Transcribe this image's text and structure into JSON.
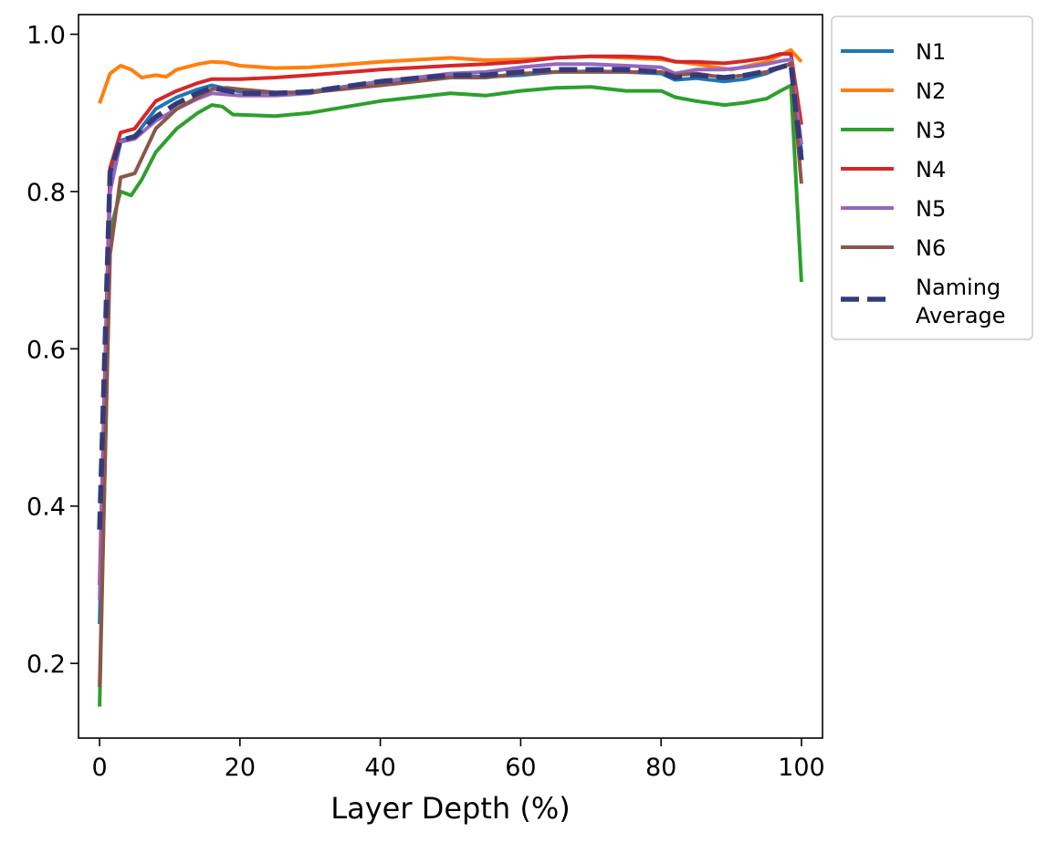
{
  "chart_data": {
    "type": "line",
    "title": "",
    "xlabel": "Layer Depth (%)",
    "ylabel": "",
    "xlim": [
      -3,
      103
    ],
    "ylim": [
      0.105,
      1.025
    ],
    "xticks": [
      0,
      20,
      40,
      60,
      80,
      100
    ],
    "yticks": [
      0.2,
      0.4,
      0.6,
      0.8,
      1.0
    ],
    "xtick_labels": [
      "0",
      "20",
      "40",
      "60",
      "80",
      "100"
    ],
    "ytick_labels": [
      "0.2",
      "0.4",
      "0.6",
      "0.8",
      "1.0"
    ],
    "grid": false,
    "legend_position": "outside-top-right",
    "series": [
      {
        "name": "N1",
        "color": "#1f77b4",
        "style": "solid",
        "x": [
          0,
          1.5,
          3,
          5,
          8,
          11,
          14,
          16,
          20,
          25,
          30,
          40,
          50,
          55,
          60,
          65,
          70,
          75,
          80,
          82,
          85,
          89,
          92,
          95,
          97,
          98.5,
          100
        ],
        "y": [
          0.25,
          0.82,
          0.865,
          0.87,
          0.905,
          0.92,
          0.93,
          0.935,
          0.927,
          0.925,
          0.927,
          0.94,
          0.947,
          0.946,
          0.948,
          0.952,
          0.953,
          0.952,
          0.95,
          0.942,
          0.944,
          0.94,
          0.943,
          0.95,
          0.958,
          0.962,
          0.85
        ]
      },
      {
        "name": "N2",
        "color": "#ff7f0e",
        "style": "solid",
        "x": [
          0,
          1.5,
          3,
          4.5,
          6,
          8,
          9.5,
          11,
          14,
          16,
          18,
          20,
          25,
          30,
          40,
          50,
          55,
          60,
          65,
          70,
          75,
          80,
          85,
          90,
          95,
          98.5,
          100
        ],
        "y": [
          0.912,
          0.95,
          0.96,
          0.955,
          0.945,
          0.948,
          0.946,
          0.955,
          0.962,
          0.965,
          0.964,
          0.96,
          0.957,
          0.958,
          0.965,
          0.97,
          0.967,
          0.968,
          0.97,
          0.972,
          0.97,
          0.968,
          0.962,
          0.955,
          0.965,
          0.98,
          0.965
        ]
      },
      {
        "name": "N3",
        "color": "#2ca02c",
        "style": "solid",
        "x": [
          0,
          1.5,
          3,
          4.5,
          6,
          8,
          11,
          14,
          16,
          17.5,
          19,
          25,
          30,
          40,
          45,
          50,
          55,
          60,
          65,
          70,
          75,
          80,
          82,
          85,
          89,
          92,
          95,
          97,
          98.5,
          100
        ],
        "y": [
          0.145,
          0.75,
          0.8,
          0.795,
          0.815,
          0.85,
          0.88,
          0.9,
          0.91,
          0.908,
          0.898,
          0.896,
          0.9,
          0.915,
          0.92,
          0.925,
          0.922,
          0.928,
          0.932,
          0.933,
          0.928,
          0.928,
          0.92,
          0.915,
          0.91,
          0.913,
          0.918,
          0.928,
          0.935,
          0.685
        ]
      },
      {
        "name": "N4",
        "color": "#d62728",
        "style": "solid",
        "x": [
          0,
          1.5,
          3,
          5,
          8,
          11,
          14,
          16,
          20,
          25,
          30,
          40,
          50,
          55,
          60,
          65,
          70,
          75,
          80,
          82,
          85,
          89,
          92,
          95,
          97,
          98.5,
          100
        ],
        "y": [
          0.3,
          0.83,
          0.875,
          0.88,
          0.915,
          0.928,
          0.938,
          0.943,
          0.943,
          0.945,
          0.948,
          0.955,
          0.96,
          0.962,
          0.965,
          0.97,
          0.972,
          0.972,
          0.97,
          0.965,
          0.965,
          0.963,
          0.966,
          0.97,
          0.975,
          0.975,
          0.885
        ]
      },
      {
        "name": "N5",
        "color": "#9467bd",
        "style": "solid",
        "x": [
          0,
          1.5,
          3,
          5,
          8,
          11,
          14,
          16,
          20,
          25,
          30,
          40,
          50,
          55,
          60,
          65,
          70,
          75,
          80,
          82,
          85,
          89,
          92,
          95,
          97,
          98.5,
          100
        ],
        "y": [
          0.28,
          0.8,
          0.863,
          0.867,
          0.89,
          0.905,
          0.918,
          0.925,
          0.922,
          0.922,
          0.925,
          0.94,
          0.95,
          0.952,
          0.958,
          0.962,
          0.962,
          0.96,
          0.958,
          0.95,
          0.955,
          0.955,
          0.958,
          0.962,
          0.966,
          0.968,
          0.86
        ]
      },
      {
        "name": "N6",
        "color": "#8c564b",
        "style": "solid",
        "x": [
          0,
          1.5,
          3,
          5,
          8,
          11,
          14,
          16,
          18,
          20,
          25,
          30,
          40,
          50,
          55,
          60,
          65,
          70,
          75,
          80,
          82,
          85,
          89,
          92,
          95,
          97,
          98.5,
          100
        ],
        "y": [
          0.17,
          0.72,
          0.818,
          0.823,
          0.88,
          0.905,
          0.92,
          0.93,
          0.932,
          0.93,
          0.926,
          0.926,
          0.935,
          0.945,
          0.945,
          0.95,
          0.952,
          0.952,
          0.952,
          0.952,
          0.948,
          0.95,
          0.945,
          0.948,
          0.952,
          0.958,
          0.963,
          0.81
        ]
      },
      {
        "name": "Naming Average",
        "legend_lines": [
          "Naming",
          "Average"
        ],
        "color": "#353a7a",
        "style": "dashed",
        "x": [
          0,
          1.5,
          3,
          5,
          8,
          11,
          14,
          16,
          20,
          25,
          30,
          40,
          50,
          55,
          60,
          65,
          70,
          75,
          80,
          82,
          85,
          89,
          92,
          95,
          97,
          98.5,
          100
        ],
        "y": [
          0.37,
          0.825,
          0.865,
          0.87,
          0.895,
          0.912,
          0.925,
          0.932,
          0.925,
          0.925,
          0.927,
          0.94,
          0.948,
          0.948,
          0.952,
          0.955,
          0.955,
          0.955,
          0.952,
          0.945,
          0.948,
          0.945,
          0.948,
          0.953,
          0.958,
          0.962,
          0.84
        ]
      }
    ]
  }
}
